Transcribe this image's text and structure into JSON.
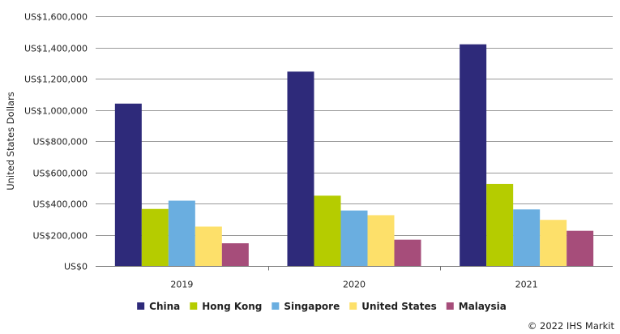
{
  "chart_data": {
    "type": "bar",
    "title": "",
    "xlabel": "",
    "ylabel": "United States Dollars",
    "categories": [
      "2019",
      "2020",
      "2021"
    ],
    "series": [
      {
        "name": "China",
        "values": [
          1040000,
          1245000,
          1420000
        ],
        "color": "#2e2a7a"
      },
      {
        "name": "Hong Kong",
        "values": [
          365000,
          450000,
          525000
        ],
        "color": "#b5cc00"
      },
      {
        "name": "Singapore",
        "values": [
          418000,
          355000,
          362000
        ],
        "color": "#6aaee0"
      },
      {
        "name": "United States",
        "values": [
          252000,
          325000,
          295000
        ],
        "color": "#fde06a"
      },
      {
        "name": "Malaysia",
        "values": [
          145000,
          168000,
          225000
        ],
        "color": "#a64d7a"
      }
    ],
    "ylim": [
      0,
      1600000
    ],
    "yticks": [
      0,
      200000,
      400000,
      600000,
      800000,
      1000000,
      1200000,
      1400000,
      1600000
    ],
    "ytick_labels": [
      "US$0",
      "US$200,000",
      "US$400,000",
      "US$600,000",
      "US$800,000",
      "US$1,000,000",
      "US$1,200,000",
      "US$1,400,000",
      "US$1,600,000"
    ],
    "grid": true,
    "legend_position": "bottom",
    "footnote": "© 2022 IHS Markit"
  }
}
